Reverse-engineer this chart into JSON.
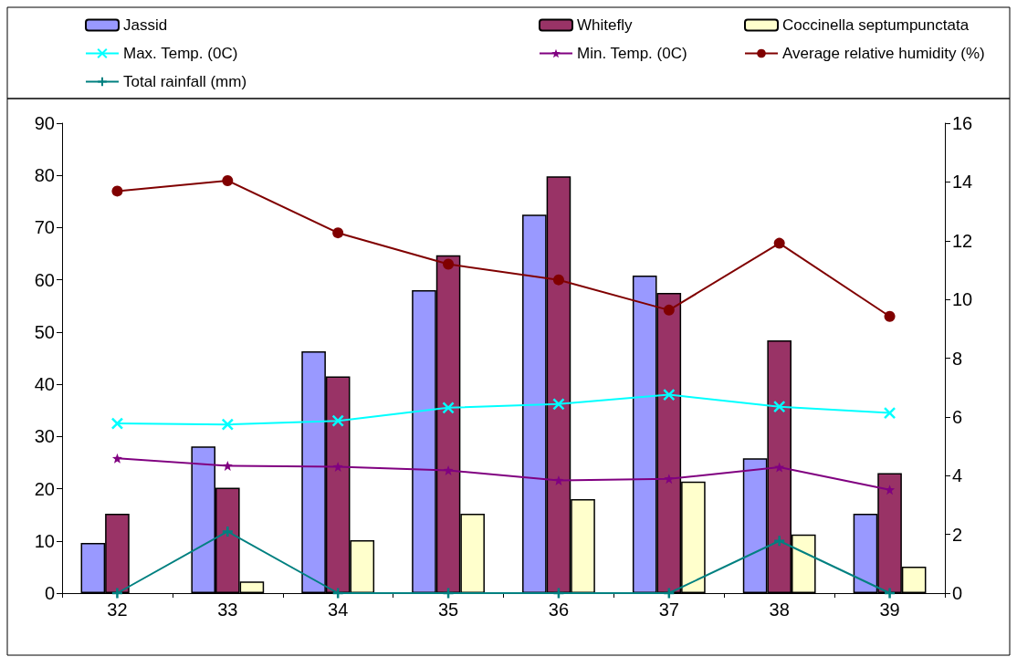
{
  "chart_data": {
    "type": "bar",
    "categories": [
      "32",
      "33",
      "34",
      "35",
      "36",
      "37",
      "38",
      "39"
    ],
    "series": [
      {
        "name": "Jassid",
        "color": "#9999ff",
        "values": [
          9.6,
          28.1,
          46.3,
          58,
          72.5,
          60.8,
          25.8,
          15.2
        ]
      },
      {
        "name": "Whitefly",
        "color": "#993366",
        "values": [
          15.2,
          20.2,
          41.5,
          64.7,
          79.8,
          57.5,
          48.4,
          23
        ]
      },
      {
        "name": "Coccinella septumpunctata",
        "color": "#ffffcc",
        "axis": "y2",
        "values": [
          null,
          0.4,
          1.8,
          2.7,
          3.2,
          3.8,
          2.0,
          0.9
        ]
      },
      {
        "name": "Max. Temp. (0C)",
        "type": "line",
        "color": "#00ffff",
        "marker": "cross",
        "values": [
          32.5,
          32.3,
          33,
          35.5,
          36.2,
          38,
          35.7,
          34.5
        ]
      },
      {
        "name": "Min. Temp. (0C)",
        "type": "line",
        "color": "#800080",
        "marker": "star",
        "values": [
          25.8,
          24.4,
          24.2,
          23.5,
          21.6,
          21.9,
          24.1,
          19.8
        ]
      },
      {
        "name": "Average relative humidity (%)",
        "type": "line",
        "color": "#800000",
        "marker": "circle",
        "values": [
          77,
          79,
          69,
          63,
          60,
          54.2,
          67,
          53
        ]
      },
      {
        "name": "Total rainfall (mm)",
        "type": "line",
        "color": "#008080",
        "marker": "plus",
        "values": [
          0,
          11.8,
          0,
          0,
          0,
          0,
          10,
          0
        ]
      }
    ],
    "ylim": [
      0,
      90
    ],
    "yticks": [
      0,
      10,
      20,
      30,
      40,
      50,
      60,
      70,
      80,
      90
    ],
    "y2lim": [
      0,
      16
    ],
    "y2ticks": [
      0,
      2,
      4,
      6,
      8,
      10,
      12,
      14,
      16
    ],
    "grid": false,
    "legend": "top"
  }
}
